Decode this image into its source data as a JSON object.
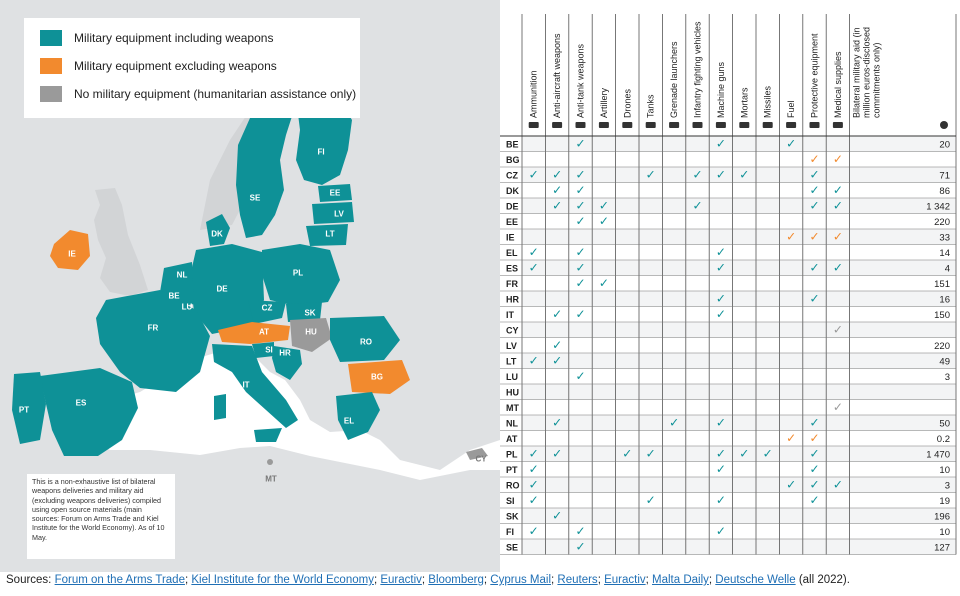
{
  "legend": {
    "items": [
      {
        "label": "Military equipment including weapons",
        "color": "#0e9197"
      },
      {
        "label": "Military equipment excluding weapons",
        "color": "#f28a2e"
      },
      {
        "label": "No military equipment (humanitarian assistance only)",
        "color": "#9a9a9a"
      }
    ]
  },
  "note": "This is a non-exhaustive list of bilateral weapons deliveries and military aid (excluding weapons deliveries) compiled using open source materials (main sources: Forum on Arms Trade and Kiel Institute for the World Economy). As of 10 May.",
  "map_labels": {
    "FI": "FI",
    "SE": "SE",
    "EE": "EE",
    "LV": "LV",
    "LT": "LT",
    "DK": "DK",
    "IE": "IE",
    "NL": "NL",
    "BE": "BE",
    "LU": "LU",
    "DE": "DE",
    "PL": "PL",
    "CZ": "CZ",
    "SK": "SK",
    "HU": "HU",
    "AT": "AT",
    "SI": "SI",
    "HR": "HR",
    "RO": "RO",
    "BG": "BG",
    "FR": "FR",
    "IT": "IT",
    "ES": "ES",
    "PT": "PT",
    "EL": "EL",
    "MT": "MT",
    "CY": "CY"
  },
  "table": {
    "columns": [
      "Ammunition",
      "Anti-aircraft weapons",
      "Anti-tank weapons",
      "Artillery",
      "Drones",
      "Tanks",
      "Grenade launchers",
      "Infantry fighting vehicles",
      "Machine guns",
      "Mortars",
      "Missiles",
      "Fuel",
      "Protective equipment",
      "Medical supplies"
    ],
    "column_icons": [
      "ammunition-icon",
      "anti-aircraft-icon",
      "anti-tank-icon",
      "artillery-icon",
      "drone-icon",
      "tank-icon",
      "grenade-icon",
      "ifv-icon",
      "machine-gun-icon",
      "mortar-icon",
      "missile-icon",
      "fuel-icon",
      "helmet-icon",
      "medical-icon"
    ],
    "aid_header": "Bilateral military aid (in million euros-disclosed commitments only)",
    "rows": [
      {
        "code": "BE",
        "checks": [
          0,
          0,
          1,
          0,
          0,
          0,
          0,
          0,
          1,
          0,
          0,
          1,
          0,
          0
        ],
        "orange": false,
        "aid": "20"
      },
      {
        "code": "BG",
        "checks": [
          0,
          0,
          0,
          0,
          0,
          0,
          0,
          0,
          0,
          0,
          0,
          0,
          1,
          1
        ],
        "orange": true,
        "aid": ""
      },
      {
        "code": "CZ",
        "checks": [
          1,
          1,
          1,
          0,
          0,
          1,
          0,
          1,
          1,
          1,
          0,
          0,
          1,
          0
        ],
        "orange": false,
        "aid": "71"
      },
      {
        "code": "DK",
        "checks": [
          0,
          1,
          1,
          0,
          0,
          0,
          0,
          0,
          0,
          0,
          0,
          0,
          1,
          1
        ],
        "orange": false,
        "aid": "86"
      },
      {
        "code": "DE",
        "checks": [
          0,
          1,
          1,
          1,
          0,
          0,
          0,
          1,
          0,
          0,
          0,
          0,
          1,
          1
        ],
        "orange": false,
        "aid": "1 342"
      },
      {
        "code": "EE",
        "checks": [
          0,
          0,
          1,
          1,
          0,
          0,
          0,
          0,
          0,
          0,
          0,
          0,
          0,
          0
        ],
        "orange": false,
        "aid": "220"
      },
      {
        "code": "IE",
        "checks": [
          0,
          0,
          0,
          0,
          0,
          0,
          0,
          0,
          0,
          0,
          0,
          1,
          1,
          1
        ],
        "orange": true,
        "aid": "33"
      },
      {
        "code": "EL",
        "checks": [
          1,
          0,
          1,
          0,
          0,
          0,
          0,
          0,
          1,
          0,
          0,
          0,
          0,
          0
        ],
        "orange": false,
        "aid": "14"
      },
      {
        "code": "ES",
        "checks": [
          1,
          0,
          1,
          0,
          0,
          0,
          0,
          0,
          1,
          0,
          0,
          0,
          1,
          1
        ],
        "orange": false,
        "aid": "4"
      },
      {
        "code": "FR",
        "checks": [
          0,
          0,
          1,
          1,
          0,
          0,
          0,
          0,
          0,
          0,
          0,
          0,
          0,
          0
        ],
        "orange": false,
        "aid": "151"
      },
      {
        "code": "HR",
        "checks": [
          0,
          0,
          0,
          0,
          0,
          0,
          0,
          0,
          1,
          0,
          0,
          0,
          1,
          0
        ],
        "orange": false,
        "aid": "16"
      },
      {
        "code": "IT",
        "checks": [
          0,
          1,
          1,
          0,
          0,
          0,
          0,
          0,
          1,
          0,
          0,
          0,
          0,
          0
        ],
        "orange": false,
        "aid": "150"
      },
      {
        "code": "CY",
        "checks": [
          0,
          0,
          0,
          0,
          0,
          0,
          0,
          0,
          0,
          0,
          0,
          0,
          0,
          1
        ],
        "orange": false,
        "grey": true,
        "aid": ""
      },
      {
        "code": "LV",
        "checks": [
          0,
          1,
          0,
          0,
          0,
          0,
          0,
          0,
          0,
          0,
          0,
          0,
          0,
          0
        ],
        "orange": false,
        "aid": "220"
      },
      {
        "code": "LT",
        "checks": [
          1,
          1,
          0,
          0,
          0,
          0,
          0,
          0,
          0,
          0,
          0,
          0,
          0,
          0
        ],
        "orange": false,
        "aid": "49"
      },
      {
        "code": "LU",
        "checks": [
          0,
          0,
          1,
          0,
          0,
          0,
          0,
          0,
          0,
          0,
          0,
          0,
          0,
          0
        ],
        "orange": false,
        "aid": "3"
      },
      {
        "code": "HU",
        "checks": [
          0,
          0,
          0,
          0,
          0,
          0,
          0,
          0,
          0,
          0,
          0,
          0,
          0,
          0
        ],
        "orange": false,
        "aid": ""
      },
      {
        "code": "MT",
        "checks": [
          0,
          0,
          0,
          0,
          0,
          0,
          0,
          0,
          0,
          0,
          0,
          0,
          0,
          1
        ],
        "orange": false,
        "grey": true,
        "aid": ""
      },
      {
        "code": "NL",
        "checks": [
          0,
          1,
          0,
          0,
          0,
          0,
          1,
          0,
          1,
          0,
          0,
          0,
          1,
          0
        ],
        "orange": false,
        "aid": "50"
      },
      {
        "code": "AT",
        "checks": [
          0,
          0,
          0,
          0,
          0,
          0,
          0,
          0,
          0,
          0,
          0,
          1,
          1,
          0
        ],
        "orange": true,
        "aid": "0.2"
      },
      {
        "code": "PL",
        "checks": [
          1,
          1,
          0,
          0,
          1,
          1,
          0,
          0,
          1,
          1,
          1,
          0,
          1,
          0
        ],
        "orange": false,
        "aid": "1 470"
      },
      {
        "code": "PT",
        "checks": [
          1,
          0,
          0,
          0,
          0,
          0,
          0,
          0,
          1,
          0,
          0,
          0,
          1,
          0
        ],
        "orange": false,
        "aid": "10"
      },
      {
        "code": "RO",
        "checks": [
          1,
          0,
          0,
          0,
          0,
          0,
          0,
          0,
          0,
          0,
          0,
          1,
          1,
          1
        ],
        "orange": false,
        "aid": "3"
      },
      {
        "code": "SI",
        "checks": [
          1,
          0,
          0,
          0,
          0,
          1,
          0,
          0,
          1,
          0,
          0,
          0,
          1,
          0
        ],
        "orange": false,
        "aid": "19"
      },
      {
        "code": "SK",
        "checks": [
          0,
          1,
          0,
          0,
          0,
          0,
          0,
          0,
          0,
          0,
          0,
          0,
          0,
          0
        ],
        "orange": false,
        "aid": "196"
      },
      {
        "code": "FI",
        "checks": [
          1,
          0,
          1,
          0,
          0,
          0,
          0,
          0,
          1,
          0,
          0,
          0,
          0,
          0
        ],
        "orange": false,
        "aid": "10"
      },
      {
        "code": "SE",
        "checks": [
          0,
          0,
          1,
          0,
          0,
          0,
          0,
          0,
          0,
          0,
          0,
          0,
          0,
          0
        ],
        "orange": false,
        "aid": "127"
      }
    ],
    "check_colors": {
      "teal": "#0e9197",
      "orange": "#f28a2e",
      "grey": "#9a9a9a"
    }
  },
  "sources": {
    "prefix": "Sources: ",
    "items": [
      "Forum on the Arms Trade",
      "Kiel Institute for the World Economy",
      "Euractiv",
      "Bloomberg",
      "Cyprus Mail",
      "Reuters",
      "Euractiv",
      "Malta Daily",
      "Deutsche Welle"
    ],
    "suffix": " (all 2022)."
  }
}
